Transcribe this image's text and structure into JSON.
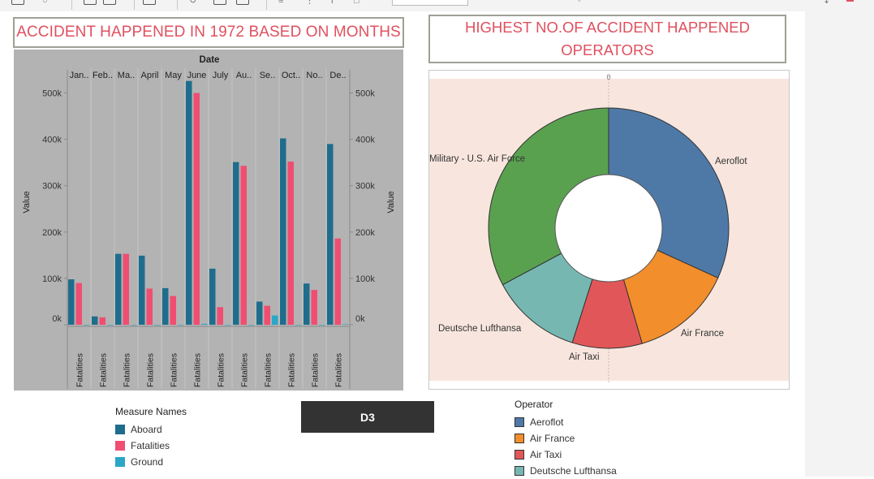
{
  "toolbar": {
    "icons": [
      "redo-icon",
      "refresh-icon",
      "new-worksheet-icon",
      "clear-sheet-icon",
      "swap-icon",
      "sort-ascending-icon",
      "sort-descending-icon",
      "highlight-icon",
      "group-icon",
      "label-icon",
      "fit-icon",
      "presentation-icon",
      "share-icon"
    ]
  },
  "bar_chart": {
    "title": "ACCIDENT HAPPENED IN 1972 BASED ON MONTHS",
    "header_label": "Date",
    "y_axis_label": "Value",
    "y_ticks": [
      "0k",
      "100k",
      "200k",
      "300k",
      "400k",
      "500k"
    ],
    "month_labels": [
      "Jan..",
      "Feb..",
      "Ma..",
      "April",
      "May",
      "June",
      "July",
      "Au..",
      "Se..",
      "Oct..",
      "No..",
      "De.."
    ],
    "column_label": "Fatalities"
  },
  "pie_chart": {
    "title": "HIGHEST NO.OF ACCIDENT HAPPENED OPERATORS",
    "top_marker": "0",
    "labels": {
      "aeroflot": "Aeroflot",
      "air_france": "Air France",
      "air_taxi": "Air Taxi",
      "lufthansa": "Deutsche Lufthansa",
      "military": "Military - U.S. Air Force"
    }
  },
  "measure_legend": {
    "title": "Measure Names",
    "items": [
      {
        "label": "Aboard",
        "color": "#1f6d8c"
      },
      {
        "label": "Fatalities",
        "color": "#ef4e72"
      },
      {
        "label": "Ground",
        "color": "#2aa6c7"
      }
    ]
  },
  "operator_legend": {
    "title": "Operator",
    "items": [
      {
        "label": "Aeroflot",
        "color": "#4e79a7"
      },
      {
        "label": "Air France",
        "color": "#f28e2b"
      },
      {
        "label": "Air Taxi",
        "color": "#e15759"
      },
      {
        "label": "Deutsche Lufthansa",
        "color": "#76b7b2"
      }
    ]
  },
  "d3_button": {
    "label": "D3"
  },
  "chart_data": [
    {
      "type": "bar",
      "title": "ACCIDENT HAPPENED IN 1972 BASED ON MONTHS",
      "xlabel": "Date",
      "ylabel": "Value",
      "ylim": [
        0,
        550000
      ],
      "categories": [
        "Jan..",
        "Feb..",
        "Ma..",
        "April",
        "May",
        "June",
        "July",
        "Au..",
        "Se..",
        "Oct..",
        "No..",
        "De.."
      ],
      "series": [
        {
          "name": "Aboard",
          "color": "#1f6d8c",
          "values": [
            98000,
            18000,
            153000,
            149000,
            79000,
            526000,
            121000,
            351000,
            50000,
            402000,
            89000,
            390000
          ]
        },
        {
          "name": "Fatalities",
          "color": "#ef4e72",
          "values": [
            90000,
            16000,
            153000,
            78000,
            62000,
            500000,
            38000,
            343000,
            41000,
            352000,
            75000,
            186000
          ]
        },
        {
          "name": "Ground",
          "color": "#2aa6c7",
          "values": [
            0,
            0,
            0,
            0,
            0,
            2000,
            0,
            0,
            20000,
            0,
            0,
            1000
          ]
        }
      ],
      "legend": "bottom-left",
      "grid": false
    },
    {
      "type": "pie",
      "title": "HIGHEST NO.OF ACCIDENT HAPPENED OPERATORS",
      "donut": true,
      "categories": [
        "Aeroflot",
        "Air France",
        "Air Taxi",
        "Deutsche Lufthansa",
        "Military - U.S. Air Force"
      ],
      "values": [
        31.8,
        13.7,
        9.4,
        12.3,
        32.8
      ],
      "colors": [
        "#4e79a7",
        "#f28e2b",
        "#e15759",
        "#76b7b2",
        "#59a14f"
      ],
      "legend": "bottom"
    }
  ]
}
